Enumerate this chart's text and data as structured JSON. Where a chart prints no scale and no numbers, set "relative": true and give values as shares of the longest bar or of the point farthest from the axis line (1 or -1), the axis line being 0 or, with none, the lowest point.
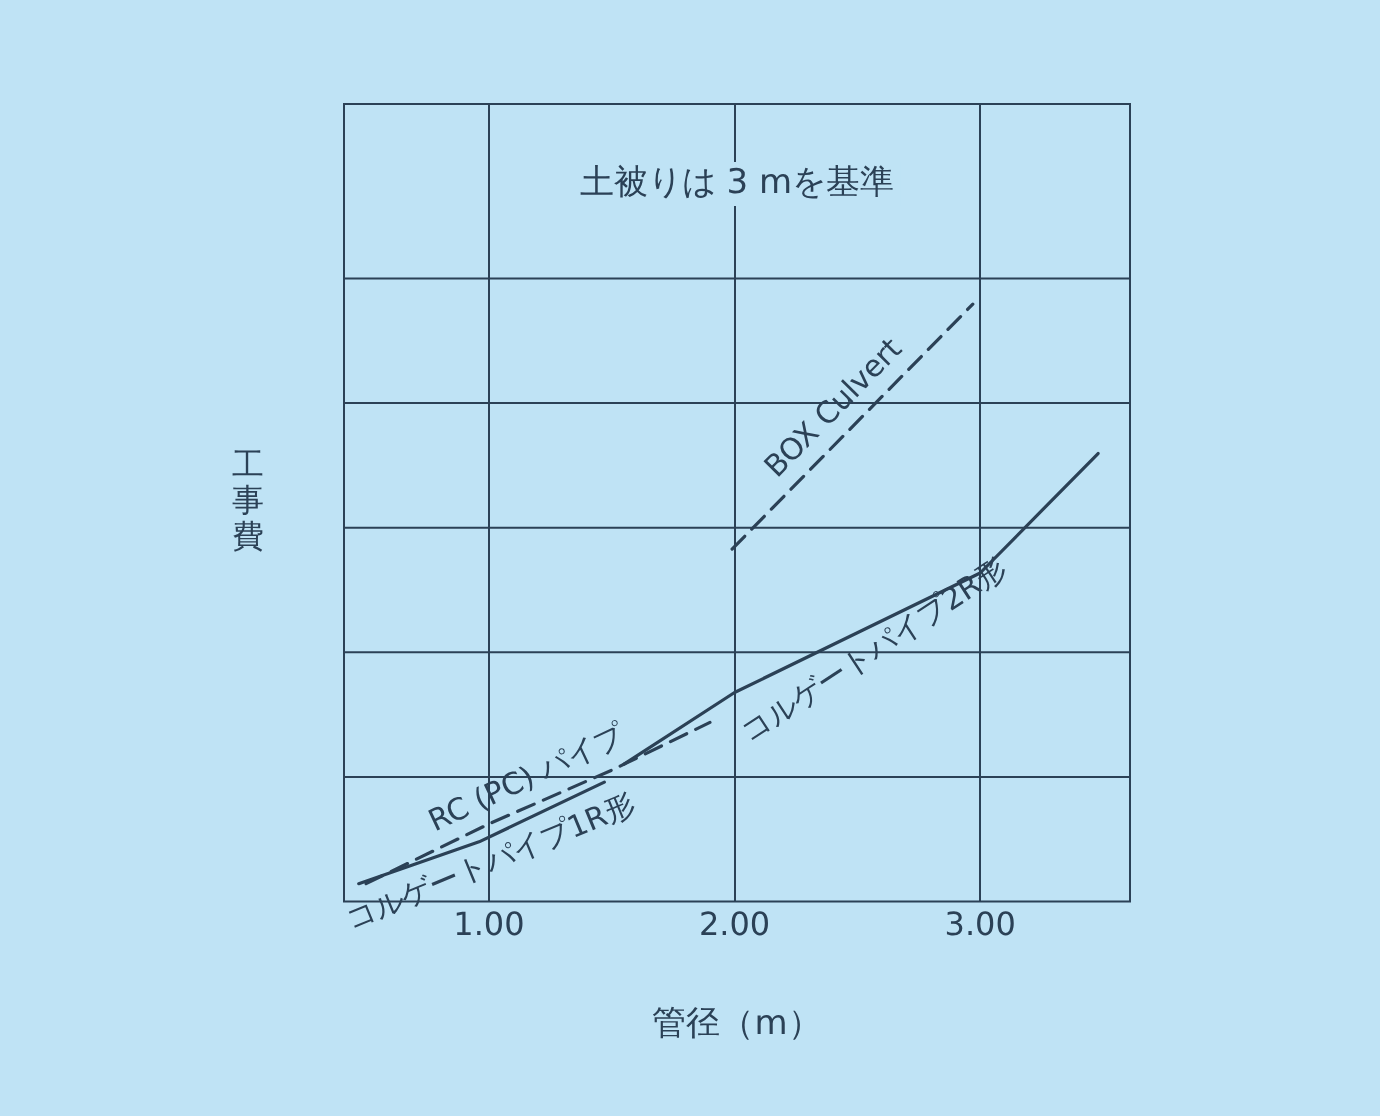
{
  "chart_data": {
    "type": "line",
    "xlabel": "管径（m）",
    "ylabel": "工事費",
    "relative": true,
    "grid": true,
    "legend": false,
    "marker": "none",
    "annotations": [
      "土被りは 3 mを基準"
    ],
    "xlim": [
      0.41,
      3.61
    ],
    "xticks": [
      {
        "value": 1,
        "label": "1.00"
      },
      {
        "value": 2,
        "label": "2.00"
      },
      {
        "value": 3,
        "label": "3.00"
      }
    ],
    "series": [
      {
        "name": "BOX Culvert",
        "color": "#2b4156",
        "line_style": "dashed",
        "x": [
          1.99,
          2.97
        ],
        "values": [
          0.59,
          1.0
        ]
      },
      {
        "name": "RC (PC) パイプ",
        "color": "#2b4156",
        "line_style": "dashed",
        "x": [
          0.5,
          1.0,
          1.5,
          1.9
        ],
        "values": [
          0.03,
          0.13,
          0.22,
          0.3
        ]
      },
      {
        "name": "コルゲートパイプ2R形",
        "color": "#2b4156",
        "line_style": "solid",
        "x": [
          1.55,
          2.0,
          2.5,
          3.0,
          3.48
        ],
        "values": [
          0.23,
          0.35,
          0.45,
          0.55,
          0.75
        ]
      },
      {
        "name": "コルゲートパイプ1R形",
        "color": "#2b4156",
        "line_style": "solid",
        "x": [
          0.47,
          0.96,
          1.47
        ],
        "values": [
          0.03,
          0.1,
          0.2
        ]
      }
    ]
  }
}
